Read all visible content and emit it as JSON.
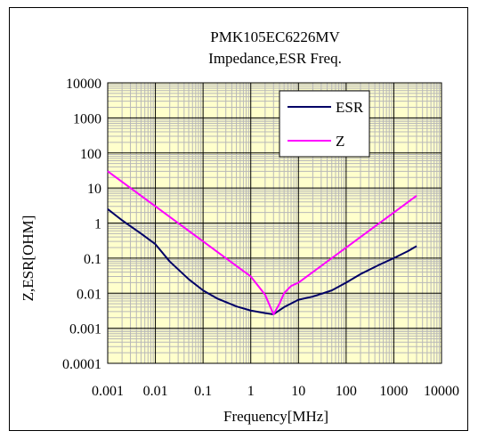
{
  "chart_data": {
    "type": "line",
    "title": "PMK105EC6226MV",
    "subtitle": "Impedance,ESR Freq.",
    "xlabel": "Frequency[MHz]",
    "ylabel": "Z,ESR[OHM]",
    "x_scale": "log",
    "y_scale": "log",
    "xlim": [
      0.001,
      10000
    ],
    "ylim": [
      0.0001,
      10000
    ],
    "x_ticks": [
      "0.001",
      "0.01",
      "0.1",
      "1",
      "10",
      "100",
      "1000",
      "10000"
    ],
    "y_ticks": [
      "10000",
      "1000",
      "100",
      "10",
      "1",
      "0.1",
      "0.01",
      "0.001",
      "0.0001"
    ],
    "grid": true,
    "legend_position": "top-right",
    "plot_background": "#ffffcc",
    "series": [
      {
        "name": "ESR",
        "color": "#000066",
        "x": [
          0.001,
          0.002,
          0.005,
          0.01,
          0.02,
          0.05,
          0.1,
          0.2,
          0.5,
          1,
          2,
          3,
          5,
          10,
          20,
          50,
          100,
          200,
          500,
          1000,
          2000,
          3000
        ],
        "y": [
          2.5,
          1.2,
          0.5,
          0.25,
          0.08,
          0.025,
          0.012,
          0.007,
          0.0042,
          0.0032,
          0.0027,
          0.0025,
          0.004,
          0.0065,
          0.008,
          0.012,
          0.02,
          0.035,
          0.065,
          0.1,
          0.16,
          0.22
        ]
      },
      {
        "name": "Z",
        "color": "#ff00ff",
        "x": [
          0.001,
          0.01,
          0.1,
          1,
          2,
          3,
          4,
          5,
          7,
          10,
          100,
          1000,
          3000
        ],
        "y": [
          30,
          3,
          0.3,
          0.03,
          0.009,
          0.0025,
          0.005,
          0.01,
          0.016,
          0.02,
          0.2,
          2,
          6
        ]
      }
    ]
  }
}
